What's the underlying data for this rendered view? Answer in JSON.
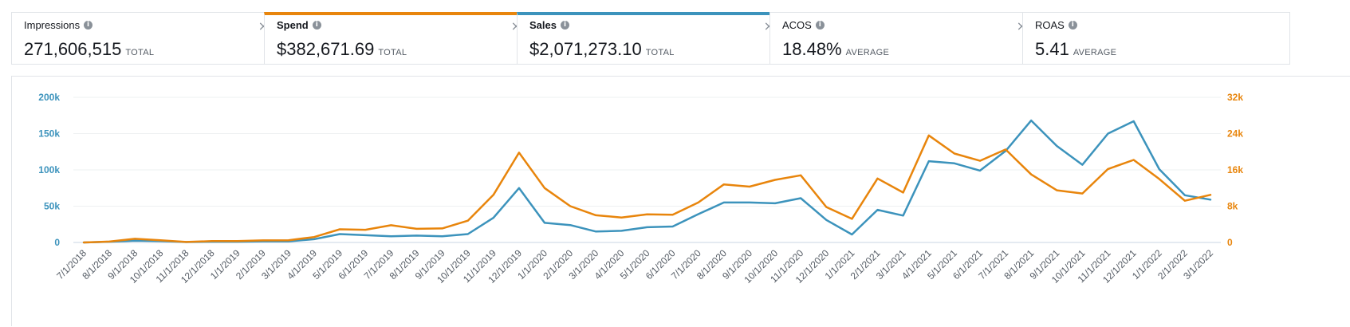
{
  "metrics": [
    {
      "label": "Impressions",
      "value": "271,606,515",
      "suffix": "TOTAL",
      "selected": false,
      "accent": null
    },
    {
      "label": "Spend",
      "value": "$382,671.69",
      "suffix": "TOTAL",
      "selected": true,
      "accent": "#e8850c"
    },
    {
      "label": "Sales",
      "value": "$2,071,273.10",
      "suffix": "TOTAL",
      "selected": true,
      "accent": "#3c93bc"
    },
    {
      "label": "ACOS",
      "value": "18.48%",
      "suffix": "AVERAGE",
      "selected": false,
      "accent": null
    },
    {
      "label": "ROAS",
      "value": "5.41",
      "suffix": "AVERAGE",
      "selected": false,
      "accent": null
    }
  ],
  "icons": {
    "info": "info-icon",
    "close": "close-icon"
  },
  "chart_data": {
    "type": "line",
    "x": [
      "7/1/2018",
      "8/1/2018",
      "9/1/2018",
      "10/1/2018",
      "11/1/2018",
      "12/1/2018",
      "1/1/2019",
      "2/1/2019",
      "3/1/2019",
      "4/1/2019",
      "5/1/2019",
      "6/1/2019",
      "7/1/2019",
      "8/1/2019",
      "9/1/2019",
      "10/1/2019",
      "11/1/2019",
      "12/1/2019",
      "1/1/2020",
      "2/1/2020",
      "3/1/2020",
      "4/1/2020",
      "5/1/2020",
      "6/1/2020",
      "7/1/2020",
      "8/1/2020",
      "9/1/2020",
      "10/1/2020",
      "11/1/2020",
      "12/1/2020",
      "1/1/2021",
      "2/1/2021",
      "3/1/2021",
      "4/1/2021",
      "5/1/2021",
      "6/1/2021",
      "7/1/2021",
      "8/1/2021",
      "9/1/2021",
      "10/1/2021",
      "11/1/2021",
      "12/1/2021",
      "1/1/2022",
      "2/1/2022",
      "3/1/2022"
    ],
    "left_axis": {
      "ticks": [
        0,
        50000,
        100000,
        150000,
        200000
      ],
      "tick_labels": [
        "0",
        "50k",
        "100k",
        "150k",
        "200k"
      ],
      "range": [
        0,
        200000
      ],
      "color": "#3c93bc"
    },
    "right_axis": {
      "ticks": [
        0,
        8000,
        16000,
        24000,
        32000
      ],
      "tick_labels": [
        "0",
        "8k",
        "16k",
        "24k",
        "32k"
      ],
      "range": [
        0,
        32000
      ],
      "color": "#e8850c"
    },
    "grid": true,
    "series": [
      {
        "name": "Sales",
        "axis": "left",
        "color": "#3c93bc",
        "values": [
          0,
          1000,
          2500,
          2000,
          500,
          1000,
          1000,
          1500,
          1500,
          4500,
          11500,
          10000,
          8500,
          9500,
          8500,
          11500,
          34000,
          75000,
          27000,
          24000,
          15000,
          16000,
          21000,
          22000,
          39000,
          55000,
          55000,
          54000,
          61000,
          31000,
          11000,
          45000,
          37000,
          112000,
          109000,
          99000,
          126000,
          168000,
          133000,
          107000,
          150000,
          167000,
          101000,
          65000,
          59000
        ]
      },
      {
        "name": "Spend",
        "axis": "right",
        "color": "#e8850c",
        "values": [
          0,
          200,
          800,
          500,
          100,
          300,
          300,
          450,
          500,
          1200,
          2900,
          2800,
          3800,
          3000,
          3100,
          4800,
          10500,
          19800,
          12000,
          8000,
          6000,
          5500,
          6200,
          6100,
          8800,
          12800,
          12300,
          13800,
          14800,
          7800,
          5200,
          14100,
          11000,
          23600,
          19600,
          18000,
          20500,
          15000,
          11500,
          10800,
          16200,
          18200,
          14000,
          9200,
          10500
        ]
      }
    ]
  }
}
